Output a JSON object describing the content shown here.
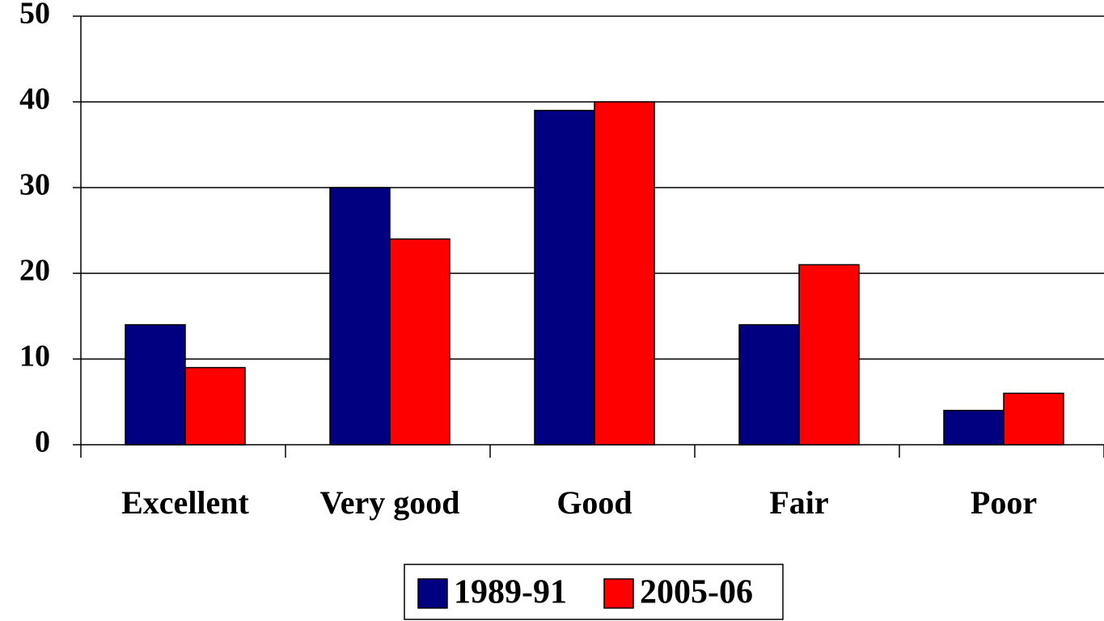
{
  "chart_data": {
    "type": "bar",
    "categories": [
      "Excellent",
      "Very good",
      "Good",
      "Fair",
      "Poor"
    ],
    "series": [
      {
        "name": "1989-91",
        "color": "#000080",
        "values": [
          14,
          30,
          39,
          14,
          4
        ]
      },
      {
        "name": "2005-06",
        "color": "#ff0000",
        "values": [
          9,
          24,
          40,
          21,
          6
        ]
      }
    ],
    "ylim": [
      0,
      50
    ],
    "yticks": [
      0,
      10,
      20,
      30,
      40,
      50
    ],
    "grid": true,
    "legend": "bottom"
  }
}
